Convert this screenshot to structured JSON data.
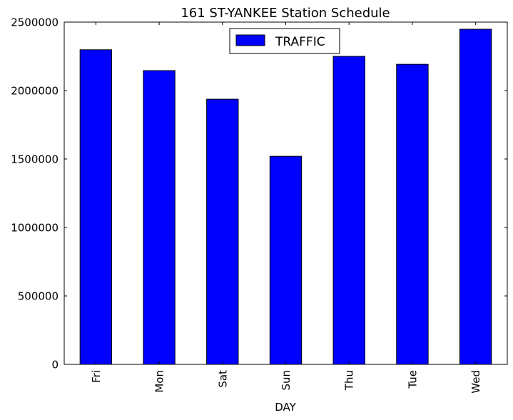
{
  "chart_data": {
    "type": "bar",
    "title": "161 ST-YANKEE Station Schedule",
    "xlabel": "DAY",
    "ylabel": "",
    "categories": [
      "Fri",
      "Mon",
      "Sat",
      "Sun",
      "Thu",
      "Tue",
      "Wed"
    ],
    "series": [
      {
        "name": "TRAFFIC",
        "color": "#0000ff",
        "values": [
          2298000,
          2146000,
          1937000,
          1520000,
          2250000,
          2192000,
          2448000
        ]
      }
    ],
    "ylim": [
      0,
      2500000
    ],
    "yticks": [
      0,
      500000,
      1000000,
      1500000,
      2000000,
      2500000
    ],
    "ytick_labels": [
      "0",
      "500000",
      "1000000",
      "1500000",
      "2000000",
      "2500000"
    ],
    "grid": false,
    "legend_position": "top-center",
    "bar_edge_color": "#000000",
    "background_color": "#ffffff"
  }
}
